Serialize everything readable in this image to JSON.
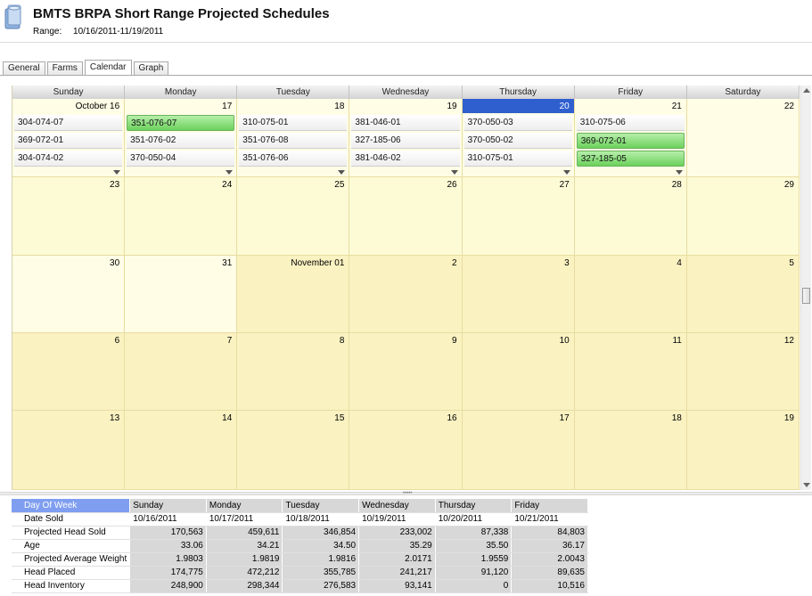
{
  "header": {
    "title": "BMTS BRPA Short Range Projected Schedules",
    "range_label": "Range:",
    "range_value": "10/16/2011-11/19/2011"
  },
  "tabs": [
    {
      "label": "General"
    },
    {
      "label": "Farms"
    },
    {
      "label": "Calendar",
      "active": true
    },
    {
      "label": "Graph"
    }
  ],
  "calendar": {
    "day_headers": [
      "Sunday",
      "Monday",
      "Tuesday",
      "Wednesday",
      "Thursday",
      "Friday",
      "Saturday"
    ],
    "weeks": [
      [
        {
          "label": "October 16",
          "appts": [
            {
              "t": "304-074-07"
            },
            {
              "t": "369-072-01"
            },
            {
              "t": "304-074-02"
            }
          ],
          "more": true
        },
        {
          "label": "17",
          "appts": [
            {
              "t": "351-076-07",
              "g": true
            },
            {
              "t": "351-076-02"
            },
            {
              "t": "370-050-04"
            }
          ],
          "more": true
        },
        {
          "label": "18",
          "appts": [
            {
              "t": "310-075-01"
            },
            {
              "t": "351-076-08"
            },
            {
              "t": "351-076-06"
            }
          ],
          "more": true
        },
        {
          "label": "19",
          "appts": [
            {
              "t": "381-046-01"
            },
            {
              "t": "327-185-06"
            },
            {
              "t": "381-046-02"
            }
          ],
          "more": true
        },
        {
          "label": "20",
          "today": true,
          "appts": [
            {
              "t": "370-050-03"
            },
            {
              "t": "370-050-02"
            },
            {
              "t": "310-075-01"
            }
          ],
          "more": true
        },
        {
          "label": "21",
          "appts": [
            {
              "t": "310-075-06"
            },
            {
              "t": "369-072-01",
              "g": true
            },
            {
              "t": "327-185-05",
              "g": true
            }
          ],
          "more": true
        },
        {
          "label": "22",
          "appts": []
        }
      ],
      [
        {
          "label": "23"
        },
        {
          "label": "24"
        },
        {
          "label": "25"
        },
        {
          "label": "26"
        },
        {
          "label": "27"
        },
        {
          "label": "28"
        },
        {
          "label": "29"
        }
      ],
      [
        {
          "label": "30"
        },
        {
          "label": "31"
        },
        {
          "label": "November 01"
        },
        {
          "label": "2"
        },
        {
          "label": "3"
        },
        {
          "label": "4"
        },
        {
          "label": "5"
        }
      ],
      [
        {
          "label": "6"
        },
        {
          "label": "7"
        },
        {
          "label": "8"
        },
        {
          "label": "9"
        },
        {
          "label": "10"
        },
        {
          "label": "11"
        },
        {
          "label": "12"
        }
      ],
      [
        {
          "label": "13"
        },
        {
          "label": "14"
        },
        {
          "label": "15"
        },
        {
          "label": "16"
        },
        {
          "label": "17"
        },
        {
          "label": "18"
        },
        {
          "label": "19"
        }
      ]
    ]
  },
  "summary": {
    "header_label": "Day Of Week",
    "days": [
      "Sunday",
      "Monday",
      "Tuesday",
      "Wednesday",
      "Thursday",
      "Friday"
    ],
    "date_label": "Date Sold",
    "dates": [
      "10/16/2011",
      "10/17/2011",
      "10/18/2011",
      "10/19/2011",
      "10/20/2011",
      "10/21/2011"
    ],
    "rows": [
      {
        "label": "Projected Head Sold",
        "values": [
          "170,563",
          "459,611",
          "346,854",
          "233,002",
          "87,338",
          "84,803"
        ]
      },
      {
        "label": "Age",
        "values": [
          "33.06",
          "34.21",
          "34.50",
          "35.29",
          "35.50",
          "36.17"
        ]
      },
      {
        "label": "Projected Average Weight",
        "values": [
          "1.9803",
          "1.9819",
          "1.9816",
          "2.0171",
          "1.9559",
          "2.0043"
        ]
      },
      {
        "label": "Head Placed",
        "values": [
          "174,775",
          "472,212",
          "355,785",
          "241,217",
          "91,120",
          "89,635"
        ]
      },
      {
        "label": "Head Inventory",
        "values": [
          "248,900",
          "298,344",
          "276,583",
          "93,141",
          "0",
          "10,516"
        ]
      }
    ]
  }
}
